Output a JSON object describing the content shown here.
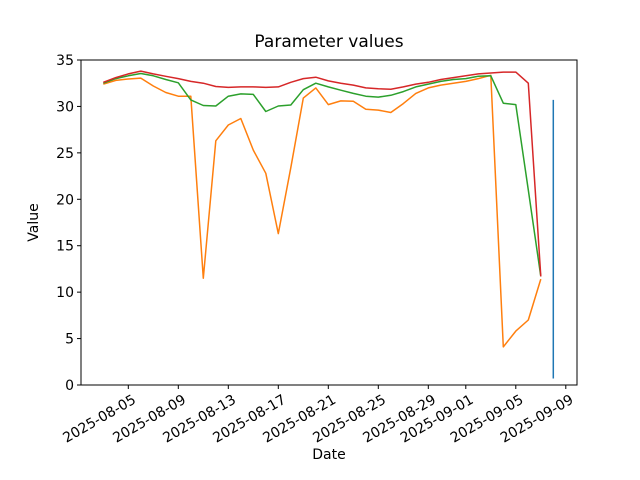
{
  "window": {
    "background": "#ffffff"
  },
  "chart_data": {
    "type": "line",
    "title": "Parameter values",
    "xlabel": "Date",
    "ylabel": "Value",
    "ylim": [
      0,
      35
    ],
    "grid": false,
    "legend": false,
    "y_ticks": [
      "0",
      "5",
      "10",
      "15",
      "20",
      "25",
      "30",
      "35"
    ],
    "x_tick_labels": [
      "2025-08-05",
      "2025-08-09",
      "2025-08-13",
      "2025-08-17",
      "2025-08-21",
      "2025-08-25",
      "2025-08-29",
      "2025-09-01",
      "2025-09-05",
      "2025-09-09"
    ],
    "x": [
      "2025-08-03",
      "2025-08-04",
      "2025-08-05",
      "2025-08-06",
      "2025-08-07",
      "2025-08-08",
      "2025-08-09",
      "2025-08-10",
      "2025-08-11",
      "2025-08-12",
      "2025-08-13",
      "2025-08-14",
      "2025-08-15",
      "2025-08-16",
      "2025-08-17",
      "2025-08-18",
      "2025-08-19",
      "2025-08-20",
      "2025-08-21",
      "2025-08-22",
      "2025-08-23",
      "2025-08-24",
      "2025-08-25",
      "2025-08-26",
      "2025-08-27",
      "2025-08-28",
      "2025-08-29",
      "2025-08-30",
      "2025-08-31",
      "2025-09-01",
      "2025-09-02",
      "2025-09-03",
      "2025-09-04",
      "2025-09-05",
      "2025-09-06",
      "2025-09-07"
    ],
    "series": [
      {
        "name": "blue",
        "color": "#1f77b4",
        "x": [
          "2025-09-08",
          "2025-09-08"
        ],
        "values": [
          30.7,
          0.7
        ]
      },
      {
        "name": "orange",
        "color": "#ff7f0e",
        "values": [
          32.4,
          32.8,
          32.95,
          33.05,
          32.2,
          31.5,
          31.1,
          31.1,
          11.5,
          26.3,
          28.0,
          28.7,
          25.3,
          22.8,
          16.3,
          23.4,
          30.9,
          32.0,
          30.2,
          30.6,
          30.55,
          29.7,
          29.6,
          29.35,
          30.3,
          31.4,
          32.0,
          32.3,
          32.5,
          32.7,
          33.0,
          33.35,
          4.1,
          5.8,
          7.0,
          11.4
        ]
      },
      {
        "name": "green",
        "color": "#2ca02c",
        "values": [
          32.5,
          33.0,
          33.3,
          33.55,
          33.3,
          32.9,
          32.55,
          30.7,
          30.1,
          30.05,
          31.1,
          31.35,
          31.3,
          29.45,
          30.05,
          30.15,
          31.8,
          32.5,
          32.1,
          31.75,
          31.4,
          31.1,
          31.0,
          31.2,
          31.6,
          32.1,
          32.4,
          32.7,
          32.9,
          33.0,
          33.25,
          33.3,
          30.35,
          30.2,
          21.0,
          11.7
        ]
      },
      {
        "name": "red",
        "color": "#d62728",
        "values": [
          32.6,
          33.1,
          33.5,
          33.8,
          33.5,
          33.25,
          33.0,
          32.7,
          32.5,
          32.15,
          32.05,
          32.1,
          32.1,
          32.05,
          32.1,
          32.6,
          33.0,
          33.15,
          32.75,
          32.5,
          32.3,
          32.0,
          31.9,
          31.85,
          32.1,
          32.4,
          32.6,
          32.9,
          33.1,
          33.3,
          33.5,
          33.6,
          33.7,
          33.7,
          32.5,
          11.7
        ]
      }
    ]
  }
}
